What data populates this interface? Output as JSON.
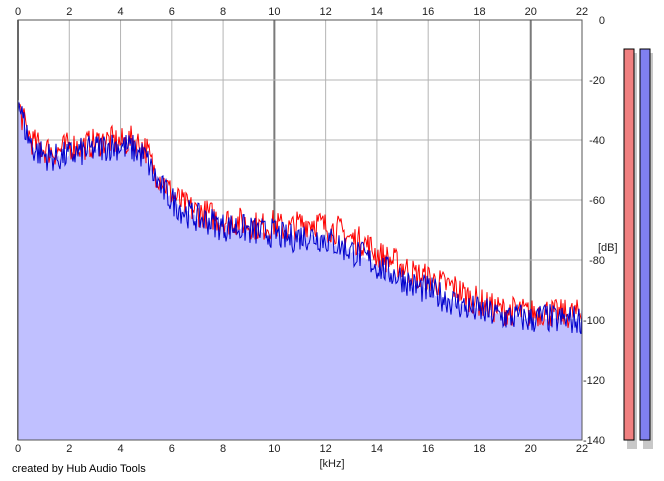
{
  "credit_text": "created by Hub Audio Tools",
  "chart_data": {
    "type": "line",
    "x_unit_label": "[kHz]",
    "y_unit_label": "[dB]",
    "x_ticks": [
      "0",
      "2",
      "4",
      "6",
      "8",
      "10",
      "12",
      "14",
      "16",
      "18",
      "20",
      "22"
    ],
    "y_ticks": [
      "0",
      "-20",
      "-40",
      "-60",
      "-80",
      "-100",
      "-120",
      "-140"
    ],
    "xlim": [
      0,
      22
    ],
    "ylim": [
      -140,
      0
    ],
    "grid": true,
    "series": [
      {
        "color": "#ff0000",
        "x": [
          0,
          0.3,
          0.6,
          1,
          1.5,
          2,
          2.5,
          3,
          3.5,
          4,
          4.5,
          5,
          5.3,
          5.6,
          6,
          6.5,
          7,
          7.5,
          8,
          8.5,
          9,
          9.5,
          10,
          10.5,
          11,
          11.5,
          12,
          12.5,
          13,
          13.5,
          14,
          14.5,
          15,
          15.5,
          16,
          16.5,
          17,
          17.5,
          18,
          18.5,
          19,
          19.5,
          20,
          20.5,
          21,
          21.5,
          22
        ],
        "y": [
          -28,
          -36,
          -41,
          -43,
          -44,
          -42,
          -42,
          -41,
          -40,
          -41,
          -40,
          -43,
          -50,
          -53,
          -58,
          -62,
          -64,
          -65,
          -67,
          -67,
          -68,
          -69,
          -68,
          -70,
          -68,
          -67,
          -69,
          -70,
          -73,
          -74,
          -78,
          -80,
          -82,
          -85,
          -86,
          -88,
          -89,
          -92,
          -94,
          -96,
          -97,
          -97,
          -98,
          -97,
          -98,
          -98,
          -98
        ]
      },
      {
        "color": "#0000cc",
        "x": [
          0,
          0.3,
          0.6,
          1,
          1.5,
          2,
          2.5,
          3,
          3.5,
          4,
          4.5,
          5,
          5.3,
          5.6,
          6,
          6.5,
          7,
          7.5,
          8,
          8.5,
          9,
          9.5,
          10,
          10.5,
          11,
          11.5,
          12,
          12.5,
          13,
          13.5,
          14,
          14.5,
          15,
          15.5,
          16,
          16.5,
          17,
          17.5,
          18,
          18.5,
          19,
          19.5,
          20,
          20.5,
          21,
          21.5,
          22
        ],
        "y": [
          -26,
          -37,
          -43,
          -45,
          -46,
          -45,
          -44,
          -43,
          -42,
          -42,
          -43,
          -46,
          -52,
          -56,
          -60,
          -64,
          -66,
          -67,
          -69,
          -69,
          -70,
          -71,
          -71,
          -73,
          -72,
          -72,
          -73,
          -75,
          -77,
          -79,
          -82,
          -84,
          -86,
          -89,
          -90,
          -92,
          -94,
          -96,
          -97,
          -98,
          -99,
          -99,
          -100,
          -99,
          -100,
          -100,
          -100
        ]
      }
    ],
    "level_meters": [
      {
        "color": "#f08080"
      },
      {
        "color": "#8080f0"
      }
    ]
  }
}
